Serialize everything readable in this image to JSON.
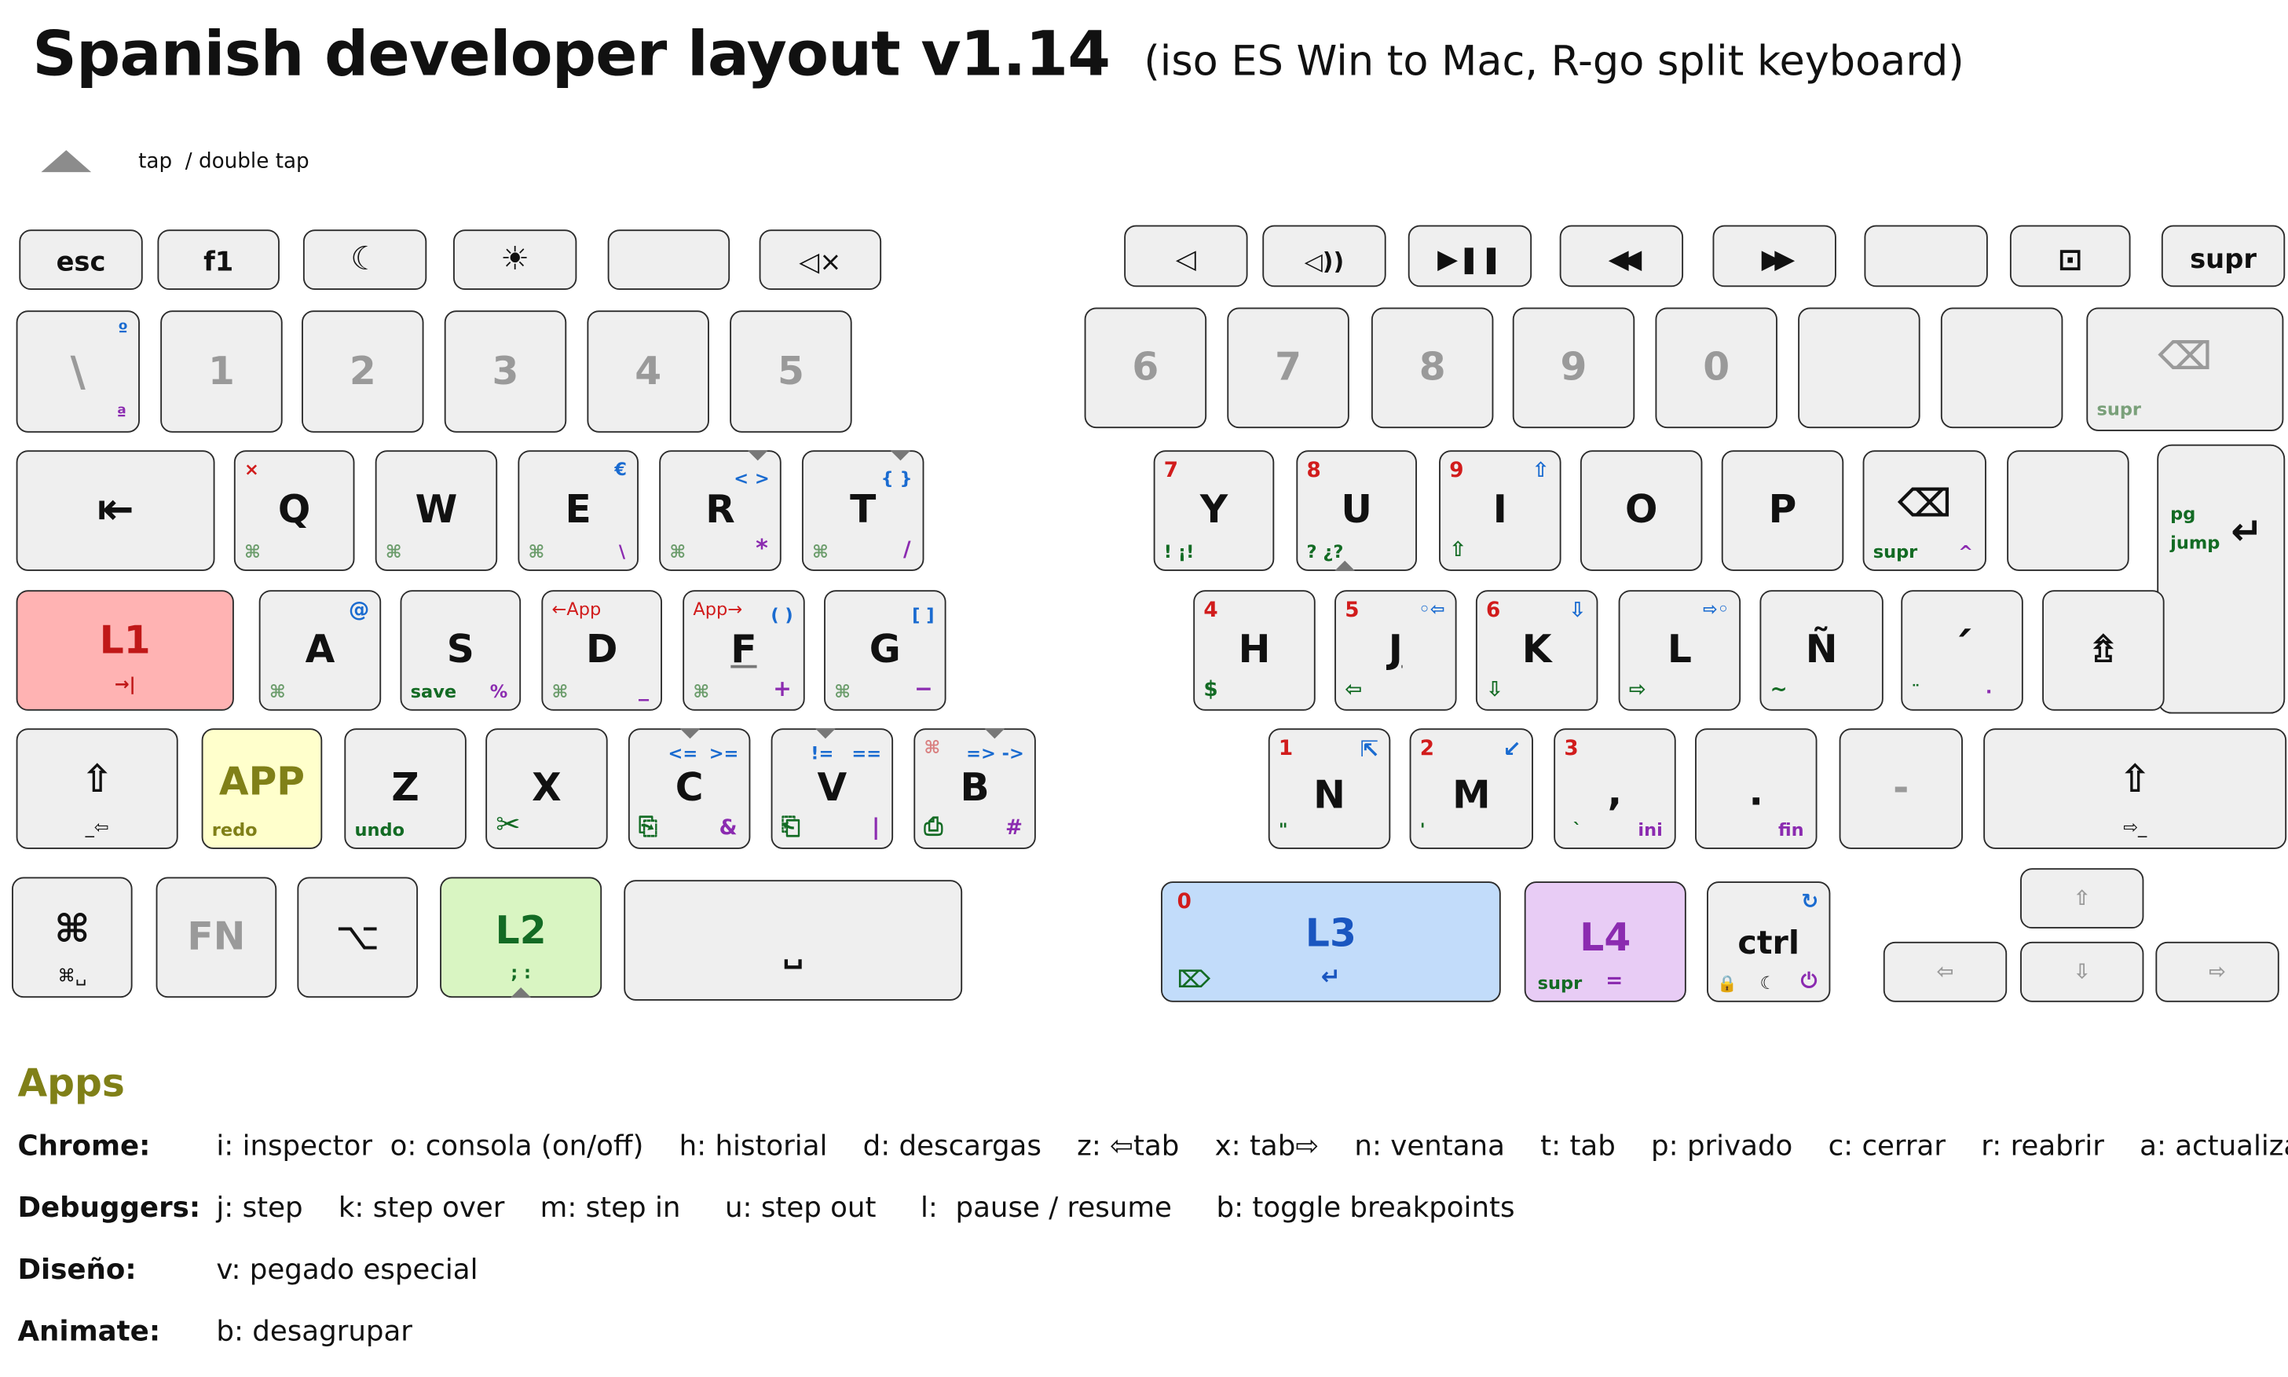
{
  "title": "Spanish developer layout v1.14",
  "subtitle": "(iso ES Win to Mac, R-go split keyboard)",
  "legend": {
    "tap": "tap",
    "double_tap": "/ double tap"
  },
  "left_fn": [
    "esc",
    "f1",
    "☾",
    "☀",
    "",
    "◁×"
  ],
  "left_num": [
    "\\",
    "1",
    "2",
    "3",
    "4",
    "5"
  ],
  "left_num_legend": {
    "tr": "º",
    "br": "ª"
  },
  "row_q": {
    "tab": "⇤",
    "Q": {
      "m": "Q",
      "tl": "×",
      "bl": "⌘"
    },
    "W": {
      "m": "W",
      "bl": "⌘"
    },
    "E": {
      "m": "E",
      "tr": "€",
      "bl": "⌘",
      "br": "\\"
    },
    "R": {
      "m": "R",
      "tr": "< >",
      "bl": "⌘",
      "br": "*"
    },
    "T": {
      "m": "T",
      "tr": "{ }",
      "bl": "⌘",
      "br": "/"
    }
  },
  "row_a": {
    "L1": {
      "m": "L1",
      "sub": "→|"
    },
    "A": {
      "m": "A",
      "tr": "@",
      "bl": "⌘"
    },
    "S": {
      "m": "S",
      "bl": "save",
      "br": "%"
    },
    "D": {
      "m": "D",
      "tl": "←App",
      "bl": "⌘",
      "br": "_"
    },
    "F": {
      "m": "F",
      "tl": "App→",
      "tr": "( )",
      "bl": "⌘",
      "br": "+"
    },
    "G": {
      "m": "G",
      "tr": "[ ]",
      "bl": "⌘",
      "br": "−"
    }
  },
  "row_z": {
    "shift": {
      "m": "⇧",
      "sub": "_⇦"
    },
    "APP": {
      "m": "APP",
      "bl": "redo"
    },
    "Z": {
      "m": "Z",
      "bl": "undo"
    },
    "X": {
      "m": "X",
      "bl": "✂"
    },
    "C": {
      "m": "C",
      "tl": "<=",
      "tr": ">=",
      "bl": "⎘",
      "br": "&"
    },
    "V": {
      "m": "V",
      "tl": "!=",
      "tr": "==",
      "bl": "⎗",
      "br": "|"
    },
    "B": {
      "m": "B",
      "tl": "⌘",
      "tr": "=> ->",
      "bl": "⎙",
      "br": "#"
    }
  },
  "row_bottom_left": {
    "cmd": {
      "m": "⌘",
      "sub": "⌘␣"
    },
    "FN": "FN",
    "opt": "⌥",
    "L2": {
      "m": "L2",
      "sub": "; :"
    },
    "space": "␣"
  },
  "right_fn": [
    "◁",
    "◁))",
    "▶❚❚",
    "◀◀",
    "▶▶",
    "",
    "⊡",
    "supr"
  ],
  "right_num": [
    "6",
    "7",
    "8",
    "9",
    "0",
    "",
    "",
    "⌫"
  ],
  "right_num_legend": {
    "bs_bl": "supr"
  },
  "row_y": {
    "Y": {
      "m": "Y",
      "tl": "7",
      "bl": "! ¡!"
    },
    "U": {
      "m": "U",
      "tl": "8",
      "bl": "? ¿?"
    },
    "I": {
      "m": "I",
      "tl": "9",
      "tr": "⇧",
      "bl": "⇧"
    },
    "O": "O",
    "P": "P",
    "BS": {
      "m": "⌫",
      "bl": "supr",
      "br": "^"
    },
    "blank": "",
    "enter": {
      "m": "↵",
      "tl": "pg",
      "bl": "jump"
    }
  },
  "row_h": {
    "H": {
      "m": "H",
      "tl": "4",
      "bl": "$"
    },
    "J": {
      "m": "J",
      "tl": "5",
      "tr": "◦⇦",
      "bl": "⇦"
    },
    "K": {
      "m": "K",
      "tl": "6",
      "tr": "⇩",
      "bl": "⇩"
    },
    "L": {
      "m": "L",
      "tr": "⇨◦",
      "bl": "⇨"
    },
    "Ñ": {
      "m": "Ñ",
      "bl": "~"
    },
    "acc": {
      "m": "´",
      "bl": "¨",
      "br": "·"
    },
    "shift": "⇯"
  },
  "row_n": {
    "N": {
      "m": "N",
      "tl": "1",
      "tr": "⇱",
      "bl": "\""
    },
    "M": {
      "m": "M",
      "tl": "2",
      "tr": "↙",
      "bl": "'"
    },
    "comma": {
      "m": ",",
      "tl": "3",
      "bl": "`",
      "br": "ini"
    },
    "period": {
      "m": ".",
      "br": "fin"
    },
    "dash": "-",
    "shift": {
      "m": "⇧",
      "sub": "⇨_"
    }
  },
  "row_bottom_right": {
    "L3": {
      "m": "L3",
      "tl": "0",
      "bl": "⌦",
      "sub": "↵"
    },
    "L4": {
      "m": "L4",
      "bl": "supr",
      "br": "="
    },
    "ctrl": {
      "m": "ctrl",
      "tr": "↻",
      "bl": "🔒",
      "bm": "☾",
      "br": "⏻"
    },
    "up": "⇧",
    "left": "⇦",
    "down": "⇩",
    "right": "⇨"
  },
  "apps": {
    "title": "Apps",
    "rows": [
      {
        "name": "Chrome:",
        "desc": "i: inspector  o: consola (on/off)    h: historial    d: descargas    z: ⇦tab    x: tab⇨    n: ventana    t: tab    p: privado    c: cerrar    r: reabrir    a: actualizar"
      },
      {
        "name": "Debuggers:",
        "desc": "j: step    k: step over    m: step in     u: step out     l:  pause / resume     b: toggle breakpoints"
      },
      {
        "name": "Diseño:",
        "desc": "v: pegado especial"
      },
      {
        "name": "Animate:",
        "desc": "b: desagrupar"
      }
    ]
  },
  "colors": {
    "L1": "#ffb3b3",
    "APP": "#ffffcc",
    "L2": "#d9f5c2",
    "L3": "#c2dcfa",
    "L4": "#e8ccf5",
    "key": "#efefef"
  }
}
